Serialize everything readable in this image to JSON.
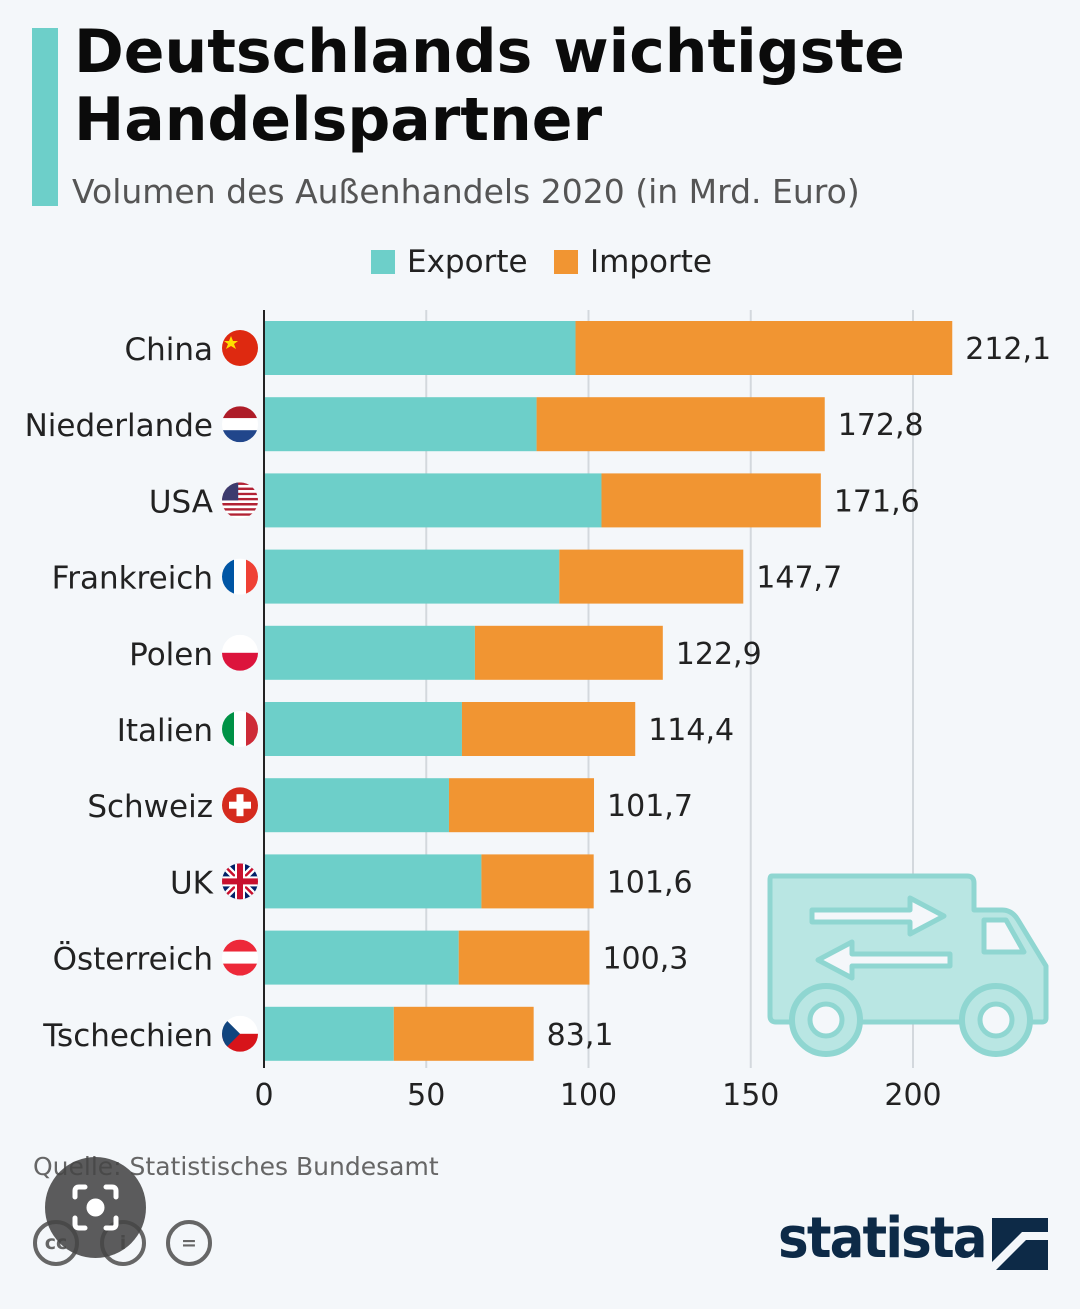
{
  "header": {
    "title": "Deutschlands wichtigste Handelspartner",
    "subtitle": "Volumen des Außenhandels 2020 (in Mrd. Euro)"
  },
  "colors": {
    "exports": "#6dcfc9",
    "imports": "#f19532",
    "accent_bar": "#6dcfc9",
    "brand": "#0d2a47"
  },
  "chart_data": {
    "type": "bar",
    "orientation": "horizontal",
    "stacked": true,
    "title": "Deutschlands wichtigste Handelspartner",
    "subtitle": "Volumen des Außenhandels 2020 (in Mrd. Euro)",
    "xlabel": "",
    "ylabel": "",
    "xlim": [
      0,
      220
    ],
    "x_ticks": [
      0,
      50,
      100,
      150,
      200
    ],
    "grid": true,
    "legend_position": "top-center",
    "categories": [
      "China",
      "Niederlande",
      "USA",
      "Frankreich",
      "Polen",
      "Italien",
      "Schweiz",
      "UK",
      "Österreich",
      "Tschechien"
    ],
    "flags": [
      "cn",
      "nl",
      "us",
      "fr",
      "pl",
      "it",
      "ch",
      "uk",
      "at",
      "cz"
    ],
    "series": [
      {
        "name": "Exporte",
        "values": [
          96.0,
          84.0,
          104.0,
          91.0,
          65.0,
          61.0,
          57.0,
          67.0,
          60.0,
          40.0
        ]
      },
      {
        "name": "Importe",
        "values": [
          116.1,
          88.8,
          67.6,
          56.7,
          57.9,
          53.4,
          44.7,
          34.6,
          40.3,
          43.1
        ]
      }
    ],
    "totals": [
      212.1,
      172.8,
      171.6,
      147.7,
      122.9,
      114.4,
      101.7,
      101.6,
      100.3,
      83.1
    ],
    "total_labels": [
      "212,1",
      "172,8",
      "171,6",
      "147,7",
      "122,9",
      "114,4",
      "101,7",
      "101,6",
      "100,3",
      "83,1"
    ]
  },
  "footer": {
    "source": "Quelle: Statistisches Bundesamt",
    "license_icons": [
      "cc",
      "i",
      "="
    ],
    "brand": "statista"
  },
  "icons": {
    "truck": "truck-icon",
    "lens": "image-search-icon"
  }
}
